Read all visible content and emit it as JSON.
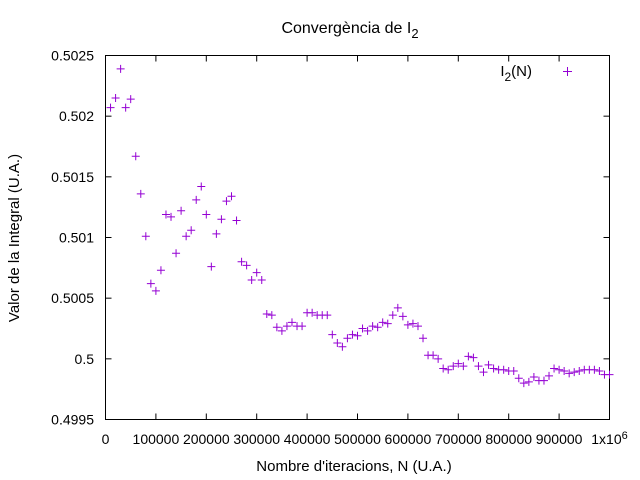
{
  "chart_data": {
    "type": "scatter",
    "title": "Convergència de I",
    "title_sub": "2",
    "xlabel": "Nombre d'iteracions, N (U.A.)",
    "ylabel": "Valor de la Integral (U.A.)",
    "xlim": [
      0,
      1000000
    ],
    "ylim": [
      0.4995,
      0.5025
    ],
    "x_ticks": [
      0,
      100000,
      200000,
      300000,
      400000,
      500000,
      600000,
      700000,
      800000,
      900000,
      1000000
    ],
    "x_tick_labels": [
      "0",
      "100000",
      "200000",
      "300000",
      "400000",
      "500000",
      "600000",
      "700000",
      "800000",
      "900000",
      "1x10"
    ],
    "x_tick_last_exponent": "6",
    "y_ticks": [
      0.4995,
      0.5,
      0.5005,
      0.501,
      0.5015,
      0.502,
      0.5025
    ],
    "y_tick_labels": [
      "0.4995",
      "0.5",
      "0.5005",
      "0.501",
      "0.5015",
      "0.502",
      "0.5025"
    ],
    "grid": false,
    "legend_position": "top-right",
    "marker": "+",
    "series": [
      {
        "name": "I",
        "name_sub": "2",
        "name_suffix": "(N)",
        "color": "#9400d3",
        "x": [
          10000,
          20000,
          30000,
          40000,
          50000,
          60000,
          70000,
          80000,
          90000,
          100000,
          110000,
          120000,
          130000,
          140000,
          150000,
          160000,
          170000,
          180000,
          190000,
          200000,
          210000,
          220000,
          230000,
          240000,
          250000,
          260000,
          270000,
          280000,
          290000,
          300000,
          310000,
          320000,
          330000,
          340000,
          350000,
          360000,
          370000,
          380000,
          390000,
          400000,
          410000,
          420000,
          430000,
          440000,
          450000,
          460000,
          470000,
          480000,
          490000,
          500000,
          510000,
          520000,
          530000,
          540000,
          550000,
          560000,
          570000,
          580000,
          590000,
          600000,
          610000,
          620000,
          630000,
          640000,
          650000,
          660000,
          670000,
          680000,
          690000,
          700000,
          710000,
          720000,
          730000,
          740000,
          750000,
          760000,
          770000,
          780000,
          790000,
          800000,
          810000,
          820000,
          830000,
          840000,
          850000,
          860000,
          870000,
          880000,
          890000,
          900000,
          910000,
          920000,
          930000,
          940000,
          950000,
          960000,
          970000,
          980000,
          990000,
          1000000
        ],
        "y": [
          0.50207,
          0.50215,
          0.50239,
          0.50207,
          0.50214,
          0.50167,
          0.50136,
          0.50101,
          0.50062,
          0.50056,
          0.50073,
          0.50119,
          0.50117,
          0.50087,
          0.50122,
          0.50101,
          0.50106,
          0.50131,
          0.50142,
          0.50119,
          0.50076,
          0.50103,
          0.50115,
          0.5013,
          0.50134,
          0.50114,
          0.5008,
          0.50077,
          0.50065,
          0.50071,
          0.50065,
          0.50037,
          0.50036,
          0.50026,
          0.50023,
          0.50027,
          0.5003,
          0.50027,
          0.50027,
          0.50038,
          0.50038,
          0.50036,
          0.50036,
          0.50036,
          0.5002,
          0.50013,
          0.5001,
          0.50017,
          0.5002,
          0.50019,
          0.50025,
          0.50023,
          0.50027,
          0.50026,
          0.5003,
          0.50029,
          0.50036,
          0.50042,
          0.50035,
          0.50028,
          0.50029,
          0.50027,
          0.50017,
          0.50003,
          0.50003,
          0.5,
          0.49992,
          0.49991,
          0.49994,
          0.49996,
          0.49994,
          0.50002,
          0.50001,
          0.49994,
          0.49989,
          0.49995,
          0.49992,
          0.49991,
          0.49991,
          0.4999,
          0.4999,
          0.49984,
          0.4998,
          0.49981,
          0.49985,
          0.49982,
          0.49982,
          0.49986,
          0.49992,
          0.49991,
          0.4999,
          0.49988,
          0.49989,
          0.4999,
          0.49991,
          0.49991,
          0.49991,
          0.4999,
          0.49987,
          0.49987
        ]
      }
    ]
  }
}
